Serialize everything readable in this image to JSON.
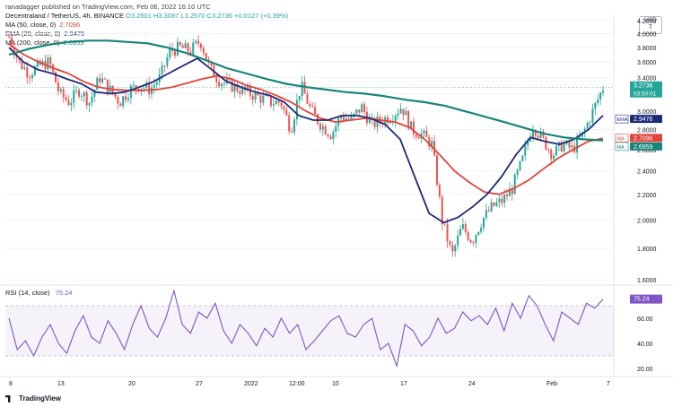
{
  "header": {
    "publisher_line": "ranadagger published on TradingView.com, Feb 06, 2022 16:10 UTC",
    "symbol": "Decentraland / TetherUS, 4h, BINANCE",
    "ohlc": "O3.2601  H3.3087  L3.2570  C3.2736  +0.0127 (+0.39%)",
    "currency": "USD",
    "currency_sub": "T"
  },
  "indicators": [
    {
      "label": "MA (50, close, 0)",
      "value": "2.7096",
      "color": "#e0443a"
    },
    {
      "label": "EMA (20, close, 0)",
      "value": "2.9476",
      "color": "#1e2a78"
    },
    {
      "label": "MA (200, close, 0)",
      "value": "2.6959",
      "color": "#17857a"
    }
  ],
  "price_badges": [
    {
      "id": "last",
      "label": "3.2736",
      "sub": "03:50:01",
      "value": 3.2736,
      "color": "#26a69a"
    },
    {
      "id": "ema",
      "tag": "EMA",
      "label": "2.9476",
      "value": 2.9476,
      "color": "#1e2a78"
    },
    {
      "id": "ma50",
      "tag": "MA",
      "label": "2.7096",
      "value": 2.7096,
      "color": "#e0443a"
    },
    {
      "id": "ma200",
      "tag": "MA",
      "label": "2.6959",
      "value": 2.6959,
      "color": "#17857a"
    }
  ],
  "rsi": {
    "label": "RSI (14, close)",
    "value": "75.24",
    "color": "#7e57c2",
    "upper_band": 70,
    "lower_band": 30,
    "ticks": [
      "60.00",
      "40.00",
      "20.00"
    ]
  },
  "footer": {
    "brand": "TradingView"
  },
  "chart_data": [
    {
      "type": "candlestick",
      "title": "Decentraland / TetherUS, 4h, BINANCE",
      "y_scale": "log",
      "ylim": [
        1.58,
        4.3
      ],
      "y_ticks": [
        "4.2000",
        "4.0000",
        "3.8000",
        "3.6000",
        "3.4000",
        "3.2000",
        "3.0000",
        "2.8000",
        "2.6000",
        "2.4000",
        "2.2000",
        "2.0000",
        "1.8000",
        "1.6000"
      ],
      "x_ticks": [
        "8",
        "13",
        "20",
        "27",
        "2022",
        "12:00",
        "10",
        "17",
        "24",
        "Feb",
        "7"
      ],
      "up_color": "#26a69a",
      "down_color": "#ef5350",
      "price_path": [
        {
          "x": 0,
          "y": 3.95
        },
        {
          "x": 1,
          "y": 3.6
        },
        {
          "x": 2,
          "y": 3.45
        },
        {
          "x": 3,
          "y": 3.55
        },
        {
          "x": 4,
          "y": 3.6
        },
        {
          "x": 5,
          "y": 3.2
        },
        {
          "x": 6,
          "y": 3.1
        },
        {
          "x": 7,
          "y": 3.25
        },
        {
          "x": 8,
          "y": 3.1
        },
        {
          "x": 9,
          "y": 3.4
        },
        {
          "x": 10,
          "y": 3.25
        },
        {
          "x": 11,
          "y": 3.1
        },
        {
          "x": 12,
          "y": 3.25
        },
        {
          "x": 13,
          "y": 3.3
        },
        {
          "x": 14,
          "y": 3.25
        },
        {
          "x": 15,
          "y": 3.4
        },
        {
          "x": 16,
          "y": 3.75
        },
        {
          "x": 17,
          "y": 3.8
        },
        {
          "x": 18,
          "y": 3.75
        },
        {
          "x": 19,
          "y": 3.9
        },
        {
          "x": 20,
          "y": 3.5
        },
        {
          "x": 21,
          "y": 3.35
        },
        {
          "x": 22,
          "y": 3.3
        },
        {
          "x": 23,
          "y": 3.25
        },
        {
          "x": 24,
          "y": 3.2
        },
        {
          "x": 25,
          "y": 3.15
        },
        {
          "x": 26,
          "y": 3.1
        },
        {
          "x": 27,
          "y": 3.1
        },
        {
          "x": 28,
          "y": 2.8
        },
        {
          "x": 29,
          "y": 3.3
        },
        {
          "x": 30,
          "y": 3.0
        },
        {
          "x": 31,
          "y": 2.85
        },
        {
          "x": 32,
          "y": 2.75
        },
        {
          "x": 33,
          "y": 2.95
        },
        {
          "x": 34,
          "y": 2.9
        },
        {
          "x": 35,
          "y": 3.05
        },
        {
          "x": 36,
          "y": 2.85
        },
        {
          "x": 37,
          "y": 2.9
        },
        {
          "x": 38,
          "y": 2.95
        },
        {
          "x": 39,
          "y": 3.05
        },
        {
          "x": 40,
          "y": 2.8
        },
        {
          "x": 41,
          "y": 2.75
        },
        {
          "x": 42,
          "y": 2.65
        },
        {
          "x": 43,
          "y": 2.0
        },
        {
          "x": 44,
          "y": 1.75
        },
        {
          "x": 45,
          "y": 1.95
        },
        {
          "x": 46,
          "y": 1.85
        },
        {
          "x": 47,
          "y": 2.0
        },
        {
          "x": 48,
          "y": 2.1
        },
        {
          "x": 49,
          "y": 2.15
        },
        {
          "x": 50,
          "y": 2.25
        },
        {
          "x": 51,
          "y": 2.5
        },
        {
          "x": 52,
          "y": 2.85
        },
        {
          "x": 53,
          "y": 2.7
        },
        {
          "x": 54,
          "y": 2.55
        },
        {
          "x": 55,
          "y": 2.65
        },
        {
          "x": 56,
          "y": 2.6
        },
        {
          "x": 57,
          "y": 2.75
        },
        {
          "x": 58,
          "y": 3.0
        },
        {
          "x": 59,
          "y": 3.27
        }
      ],
      "series": [
        {
          "name": "MA (50, close, 0)",
          "values": [
            3.85,
            3.7,
            3.6,
            3.52,
            3.45,
            3.35,
            3.28,
            3.25,
            3.24,
            3.24,
            3.25,
            3.28,
            3.33,
            3.38,
            3.42,
            3.38,
            3.3,
            3.25,
            3.18,
            3.1,
            3.0,
            2.92,
            2.88,
            2.9,
            2.92,
            2.9,
            2.88,
            2.82,
            2.7,
            2.55,
            2.4,
            2.3,
            2.22,
            2.2,
            2.25,
            2.32,
            2.42,
            2.52,
            2.6,
            2.68,
            2.71
          ]
        },
        {
          "name": "EMA (20, close, 0)",
          "values": [
            3.8,
            3.6,
            3.5,
            3.45,
            3.38,
            3.32,
            3.22,
            3.2,
            3.22,
            3.28,
            3.35,
            3.45,
            3.55,
            3.65,
            3.5,
            3.35,
            3.28,
            3.22,
            3.18,
            3.1,
            2.95,
            2.9,
            2.9,
            2.95,
            2.95,
            2.92,
            2.85,
            2.7,
            2.35,
            2.05,
            1.98,
            2.02,
            2.1,
            2.2,
            2.35,
            2.55,
            2.72,
            2.68,
            2.65,
            2.7,
            2.8,
            2.95
          ]
        },
        {
          "name": "MA (200, close, 0)",
          "values": [
            3.7,
            3.78,
            3.84,
            3.88,
            3.9,
            3.9,
            3.88,
            3.86,
            3.8,
            3.72,
            3.62,
            3.52,
            3.45,
            3.38,
            3.32,
            3.28,
            3.25,
            3.22,
            3.2,
            3.17,
            3.13,
            3.1,
            3.06,
            3.0,
            2.94,
            2.88,
            2.82,
            2.76,
            2.72,
            2.7,
            2.69
          ]
        }
      ]
    },
    {
      "type": "line",
      "title": "RSI (14, close)",
      "ylim": [
        15,
        85
      ],
      "y_ticks": [
        "60.00",
        "40.00",
        "20.00"
      ],
      "bands": [
        30,
        70
      ],
      "series": [
        {
          "name": "RSI (14, close)",
          "values": [
            60,
            35,
            42,
            30,
            45,
            55,
            40,
            32,
            50,
            62,
            45,
            40,
            58,
            48,
            35,
            55,
            70,
            52,
            45,
            60,
            82,
            55,
            48,
            65,
            60,
            72,
            50,
            40,
            55,
            48,
            38,
            52,
            45,
            60,
            48,
            55,
            35,
            42,
            50,
            58,
            62,
            48,
            45,
            55,
            60,
            35,
            40,
            22,
            55,
            50,
            38,
            45,
            60,
            48,
            52,
            65,
            58,
            62,
            55,
            68,
            50,
            72,
            60,
            78,
            70,
            55,
            42,
            65,
            60,
            55,
            72,
            68,
            75.24
          ]
        }
      ]
    }
  ]
}
